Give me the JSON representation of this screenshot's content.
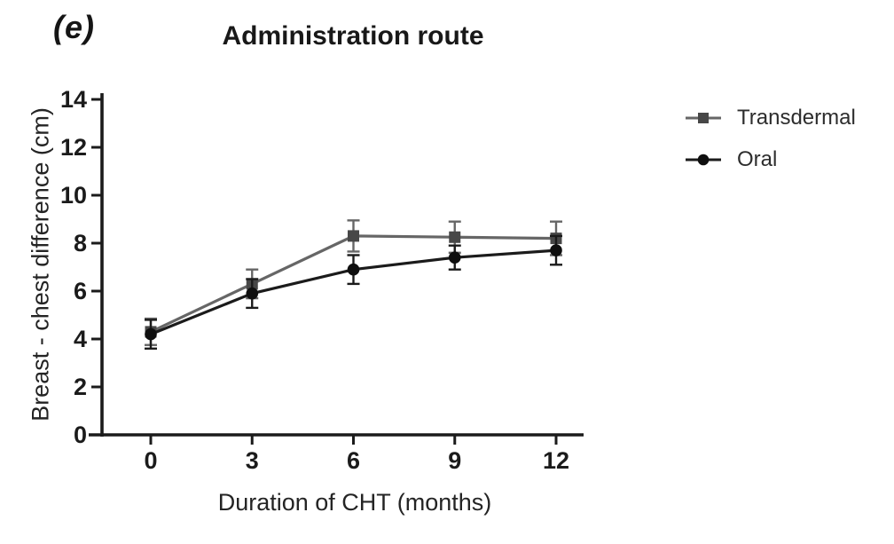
{
  "panel_label": "(e)",
  "title": "Administration route",
  "chart_data": {
    "type": "line",
    "title": "Administration route",
    "x": [
      0,
      3,
      6,
      9,
      12
    ],
    "xticks": [
      0,
      3,
      6,
      9,
      12
    ],
    "yticks": [
      0,
      2,
      4,
      6,
      8,
      10,
      12,
      14
    ],
    "xlim": [
      0,
      12
    ],
    "ylim": [
      0,
      14
    ],
    "xlabel": "Duration of CHT (months)",
    "ylabel": "Breast - chest difference (cm)",
    "grid": false,
    "legend_position": "right",
    "error_bars": true,
    "series": [
      {
        "name": "Transdermal",
        "values": [
          4.3,
          6.3,
          8.3,
          8.25,
          8.2
        ],
        "errors": [
          0.55,
          0.6,
          0.65,
          0.65,
          0.7
        ],
        "marker": "square",
        "line_color": "#666666",
        "marker_color": "#474747"
      },
      {
        "name": "Oral",
        "values": [
          4.2,
          5.9,
          6.9,
          7.4,
          7.7
        ],
        "errors": [
          0.6,
          0.6,
          0.6,
          0.5,
          0.6
        ],
        "marker": "circle",
        "line_color": "#1b1b1b",
        "marker_color": "#0f0f0f"
      }
    ],
    "axis_color": "#1b1b1b"
  }
}
